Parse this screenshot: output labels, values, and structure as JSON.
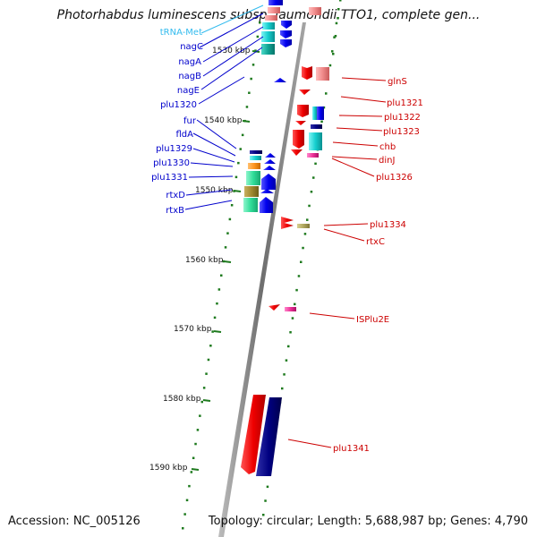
{
  "title": "Photorhabdus luminescens subsp. laumondii TTO1, complete gen...",
  "footer": {
    "accession": "Accession: NC_005126",
    "topology": "Topology: circular; Length: 5,688,987 bp; Genes: 4,790"
  },
  "colors": {
    "backbone": "#8c8c8c",
    "tick": "#1e7a1e",
    "forward_label": "#0000cc",
    "reverse_label": "#cc0000",
    "rna_label": "#33bbee"
  },
  "scale": {
    "unit": "kbp",
    "ticks": [
      "1530 kbp",
      "1540 kbp",
      "1550 kbp",
      "1560 kbp",
      "1570 kbp",
      "1580 kbp",
      "1590 kbp"
    ]
  },
  "left_labels": [
    "tRNA-Met",
    "nagC",
    "nagA",
    "nagB",
    "nagE",
    "plu1320",
    "fur",
    "fldA",
    "plu1329",
    "plu1330",
    "plu1331",
    "rtxD",
    "rtxB"
  ],
  "right_labels": [
    "glnS",
    "plu1321",
    "plu1322",
    "plu1323",
    "chb",
    "dinJ",
    "plu1326",
    "plu1334",
    "rtxC",
    "ISPlu2E",
    "plu1341"
  ]
}
